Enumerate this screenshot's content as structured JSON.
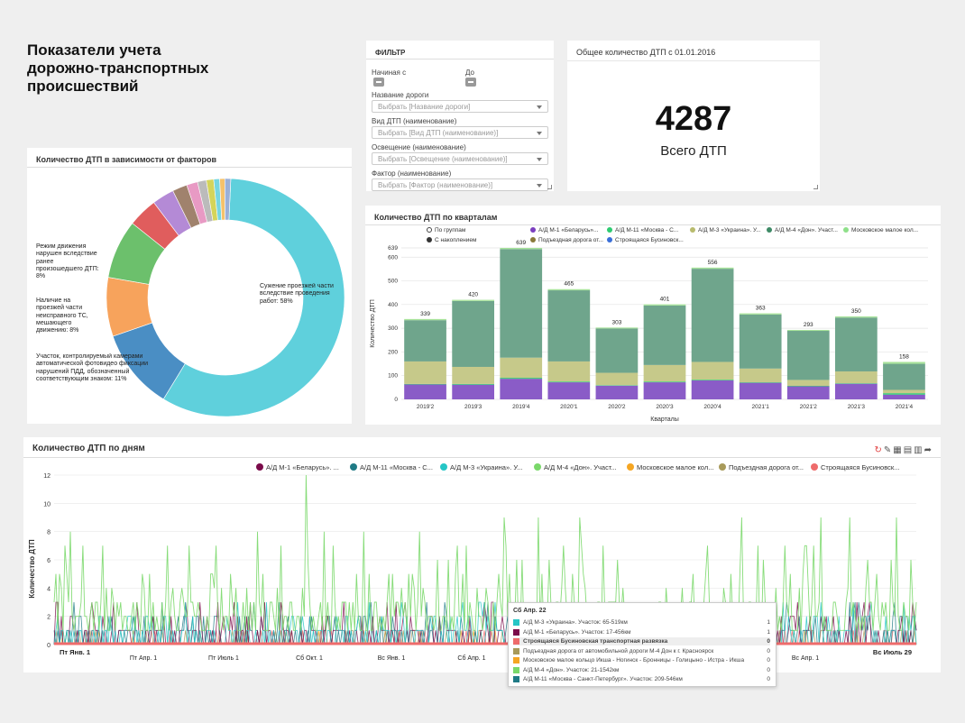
{
  "page_title": "Показатели учета дорожно-транспортных происшествий",
  "filter": {
    "title": "ФИЛЬТР",
    "start_label": "Начиная с",
    "end_label": "До",
    "road_label": "Название дороги",
    "road_placeholder": "Выбрать [Название дороги]",
    "type_label": "Вид ДТП (наименование)",
    "type_placeholder": "Выбрать [Вид ДТП (наименование)]",
    "light_label": "Освещение (наименование)",
    "light_placeholder": "Выбрать [Освещение (наименование)]",
    "factor_label": "Фактор (наименование)",
    "factor_placeholder": "Выбрать [Фактор (наименование)]"
  },
  "total": {
    "title": "Общее количество ДТП с 01.01.2016",
    "value": "4287",
    "caption": "Всего ДТП"
  },
  "donut": {
    "title": "Количество ДТП в зависимости от факторов",
    "labels": [
      "Сужение проезжей части вследствие проведения работ: 58%",
      "Участок, контролируемый камерами автоматической фотовидео фиксации нарушений ПДД, обозначенный соответствующим знаком: 11%",
      "Наличие на проезжей части неисправного ТС, мешающего движению: 8%",
      "Режим движения нарушен вследствие ранее произошедшего ДТП: 8%"
    ]
  },
  "quarters": {
    "title": "Количество ДТП по кварталам",
    "legend": [
      {
        "label": "По группам",
        "color": "#ffffff"
      },
      {
        "label": "С накоплением",
        "color": "#333333"
      },
      {
        "label": "А/Д М-1 «Беларусь»...",
        "color": "#7b3fbf"
      },
      {
        "label": "Подъездная дорога от...",
        "color": "#8a7a3a"
      },
      {
        "label": "А/Д М-11 «Москва - С...",
        "color": "#2ecc71"
      },
      {
        "label": "Строящаяся Бусиновск...",
        "color": "#3a6fd8"
      },
      {
        "label": "А/Д М-3 «Украина». У...",
        "color": "#b8bb6e"
      },
      {
        "label": "А/Д М-4 «Дон». Участ...",
        "color": "#3e8a66"
      },
      {
        "label": "Московское малое кол...",
        "color": "#8fe08a"
      }
    ],
    "ylabel": "Количество ДТП",
    "xlabel": "Кварталы"
  },
  "daily": {
    "title": "Количество ДТП по дням",
    "ylabel": "Количество ДТП",
    "legend": [
      {
        "label": "А/Д М-1 «Беларусь». ...",
        "color": "#7a0b4a"
      },
      {
        "label": "А/Д М-11 «Москва - С...",
        "color": "#1f7a85"
      },
      {
        "label": "А/Д М-3 «Украина». У...",
        "color": "#25c6c6"
      },
      {
        "label": "А/Д М-4 «Дон». Участ...",
        "color": "#7ad86a"
      },
      {
        "label": "Московское малое кол...",
        "color": "#f5a623"
      },
      {
        "label": "Подъездная дорога от...",
        "color": "#a89a5a"
      },
      {
        "label": "Строящаяся Бусиновск...",
        "color": "#ee6b6b"
      }
    ],
    "x_ticks": [
      "Пт Янв. 1",
      "Пт Апр. 1",
      "Пт Июль 1",
      "Сб Окт. 1",
      "Вс Янв. 1",
      "Сб Апр. 1",
      "Сб Апр. 1",
      "Вс Апр. 1",
      "Вс Июль 29"
    ]
  },
  "tooltip": {
    "title": "Сб Апр. 22",
    "rows": [
      {
        "name": "А/Д М-3 «Украина». Участок: 65-519км",
        "value": "1",
        "color": "#25c6c6",
        "bold": false
      },
      {
        "name": "А/Д М-1 «Беларусь». Участок: 17-456км",
        "value": "1",
        "color": "#7a0b4a",
        "bold": false
      },
      {
        "name": "Строящаяся Бусиновская транспортная развязка",
        "value": "0",
        "color": "#ee6b6b",
        "bold": true
      },
      {
        "name": "Подъездная дорога от автомобильной дороги М-4 Дон к г. Красноярск",
        "value": "0",
        "color": "#a89a5a",
        "bold": false
      },
      {
        "name": "Московское малое кольцо Икша - Ногинск - Бронницы - Голицыно - Истра - Икша",
        "value": "0",
        "color": "#f5a623",
        "bold": false
      },
      {
        "name": "А/Д М-4 «Дон». Участок: 21-1542км",
        "value": "0",
        "color": "#7ad86a",
        "bold": false
      },
      {
        "name": "А/Д М-11 «Москва - Санкт-Петербург». Участок: 209-546км",
        "value": "0",
        "color": "#1f7a85",
        "bold": false
      }
    ]
  },
  "chart_data": [
    {
      "type": "pie",
      "title": "Количество ДТП в зависимости от факторов",
      "categories": [
        "Сужение проезжей части вследствие проведения работ",
        "Участок, контролируемый камерами автоматической фотовидео фиксации нарушений ПДД, обозначенный соответствующим знаком",
        "Наличие на проезжей части неисправного ТС, мешающего движению",
        "Режим движения нарушен вследствие ранее произошедшего ДТП",
        "",
        "",
        "",
        "",
        "",
        "",
        "",
        "",
        ""
      ],
      "values": [
        58,
        11,
        8,
        8,
        4,
        3,
        2,
        1.5,
        1.2,
        1,
        0.8,
        0.7,
        0.8
      ],
      "colors": [
        "#5fd0dc",
        "#4a8ec4",
        "#f7a35c",
        "#6cc06c",
        "#e05d5d",
        "#b48ad6",
        "#a0826d",
        "#e89ac4",
        "#bbbbbb",
        "#d4d45a",
        "#76d6e0",
        "#f5c26b",
        "#9ab0d8"
      ]
    },
    {
      "type": "bar",
      "title": "Количество ДТП по кварталам",
      "categories": [
        "2019'2",
        "2019'3",
        "2019'4",
        "2020'1",
        "2020'2",
        "2020'3",
        "2020'4",
        "2021'1",
        "2021'2",
        "2021'3",
        "2021'4"
      ],
      "totals": [
        339,
        420,
        639,
        465,
        303,
        401,
        556,
        363,
        293,
        350,
        158
      ],
      "series": [
        {
          "name": "А/Д М-1 «Беларусь»...",
          "color": "#8a5cc7",
          "values": [
            63,
            62,
            87,
            72,
            58,
            72,
            80,
            70,
            55,
            66,
            20
          ]
        },
        {
          "name": "А/Д М-11 «Москва - С...",
          "color": "#2ecc71",
          "values": [
            2,
            3,
            4,
            3,
            2,
            3,
            3,
            2,
            2,
            2,
            6
          ]
        },
        {
          "name": "А/Д М-3 «Украина». У...",
          "color": "#c6c98a",
          "values": [
            95,
            72,
            85,
            85,
            52,
            70,
            75,
            58,
            25,
            50,
            14
          ]
        },
        {
          "name": "А/Д М-4 «Дон». Участ...",
          "color": "#6fa58c",
          "values": [
            174,
            278,
            458,
            300,
            187,
            251,
            393,
            228,
            207,
            227,
            110
          ]
        },
        {
          "name": "Московское малое кол...",
          "color": "#a7e39a",
          "values": [
            5,
            5,
            5,
            5,
            4,
            5,
            5,
            5,
            4,
            5,
            8
          ]
        }
      ],
      "yticks": [
        0,
        100,
        200,
        300,
        400,
        500,
        600,
        639
      ],
      "ylim": [
        0,
        639
      ],
      "xlabel": "Кварталы",
      "ylabel": "Количество ДТП"
    },
    {
      "type": "line",
      "title": "Количество ДТП по дням",
      "ylabel": "Количество ДТП",
      "ylim": [
        0,
        12
      ],
      "yticks": [
        0,
        2,
        4,
        6,
        8,
        10,
        12
      ]
    }
  ]
}
